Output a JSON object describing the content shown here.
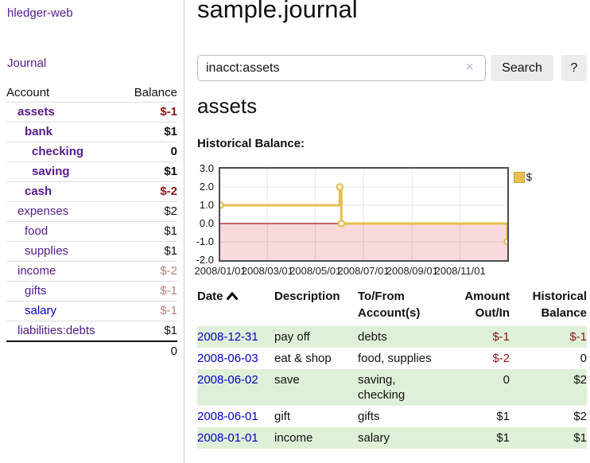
{
  "app": {
    "brand": "hledger-web",
    "nav": {
      "journal": "Journal"
    }
  },
  "sidebar": {
    "account_header": "Account",
    "balance_header": "Balance",
    "accounts": [
      {
        "name": "assets",
        "balance": "$-1",
        "indent": 1,
        "bold": true,
        "balance_tone": "neg-strong"
      },
      {
        "name": "bank",
        "balance": "$1",
        "indent": 2,
        "bold": true,
        "balance_tone": "normal"
      },
      {
        "name": "checking",
        "balance": "0",
        "indent": 3,
        "bold": true,
        "balance_tone": "normal"
      },
      {
        "name": "saving",
        "balance": "$1",
        "indent": 3,
        "bold": true,
        "balance_tone": "normal"
      },
      {
        "name": "cash",
        "balance": "$-2",
        "indent": 2,
        "bold": true,
        "balance_tone": "neg-strong"
      },
      {
        "name": "expenses",
        "balance": "$2",
        "indent": 1,
        "bold": false,
        "balance_tone": "normal"
      },
      {
        "name": "food",
        "balance": "$1",
        "indent": 2,
        "bold": false,
        "balance_tone": "normal"
      },
      {
        "name": "supplies",
        "balance": "$1",
        "indent": 2,
        "bold": false,
        "balance_tone": "normal"
      },
      {
        "name": "income",
        "balance": "$-2",
        "indent": 1,
        "bold": false,
        "balance_tone": "neg-soft"
      },
      {
        "name": "gifts",
        "balance": "$-1",
        "indent": 2,
        "bold": false,
        "balance_tone": "neg-soft"
      },
      {
        "name": "salary",
        "balance": "$-1",
        "indent": 2,
        "bold": false,
        "balance_tone": "neg-soft",
        "link_tone": "blue"
      },
      {
        "name": "liabilities:debts",
        "balance": "$1",
        "indent": 1,
        "bold": false,
        "balance_tone": "normal"
      }
    ],
    "total": "0"
  },
  "main": {
    "title": "sample.journal",
    "search": {
      "value": "inacct:assets",
      "clear": "×",
      "button": "Search",
      "help": "?"
    },
    "account_heading": "assets",
    "chart_label": "Historical Balance:"
  },
  "chart_data": {
    "type": "line",
    "style": "step-after",
    "title": "Historical Balance:",
    "x_range": [
      "2008-01-01",
      "2008-12-31"
    ],
    "ylim": [
      -2,
      3
    ],
    "y_ticks": [
      "3.0",
      "2.0",
      "1.0",
      "0.0",
      "-1.0",
      "-2.0"
    ],
    "x_ticks": [
      "2008/01/01",
      "2008/03/01",
      "2008/05/01",
      "2008/07/01",
      "2008/09/01",
      "2008/11/01"
    ],
    "legend": [
      "$"
    ],
    "legend_position": "top-right",
    "grid": true,
    "negative_region_color": "#f9dadc",
    "zero_line_color": "#9b1313",
    "series": [
      {
        "name": "$",
        "color": "#e6bf4e",
        "points": [
          {
            "x": "2008-01-01",
            "y": 1
          },
          {
            "x": "2008-06-01",
            "y": 2
          },
          {
            "x": "2008-06-03",
            "y": 0
          },
          {
            "x": "2008-12-31",
            "y": -1
          }
        ]
      }
    ]
  },
  "transactions": {
    "headers": [
      "Date",
      "Description",
      "To/From Account(s)",
      "Amount Out/In",
      "Historical Balance"
    ],
    "rows": [
      {
        "date": "2008-12-31",
        "description": "pay off",
        "accounts": "debts",
        "amount": "$-1",
        "amount_negative": true,
        "balance": "$-1",
        "balance_negative": true
      },
      {
        "date": "2008-06-03",
        "description": "eat & shop",
        "accounts": "food, supplies",
        "amount": "$-2",
        "amount_negative": true,
        "balance": "0",
        "balance_negative": false
      },
      {
        "date": "2008-06-02",
        "description": "save",
        "accounts": "saving, checking",
        "amount": "0",
        "amount_negative": false,
        "balance": "$2",
        "balance_negative": false
      },
      {
        "date": "2008-06-01",
        "description": "gift",
        "accounts": "gifts",
        "amount": "$1",
        "amount_negative": false,
        "balance": "$2",
        "balance_negative": false
      },
      {
        "date": "2008-01-01",
        "description": "income",
        "accounts": "salary",
        "amount": "$1",
        "amount_negative": false,
        "balance": "$1",
        "balance_negative": false
      }
    ]
  }
}
